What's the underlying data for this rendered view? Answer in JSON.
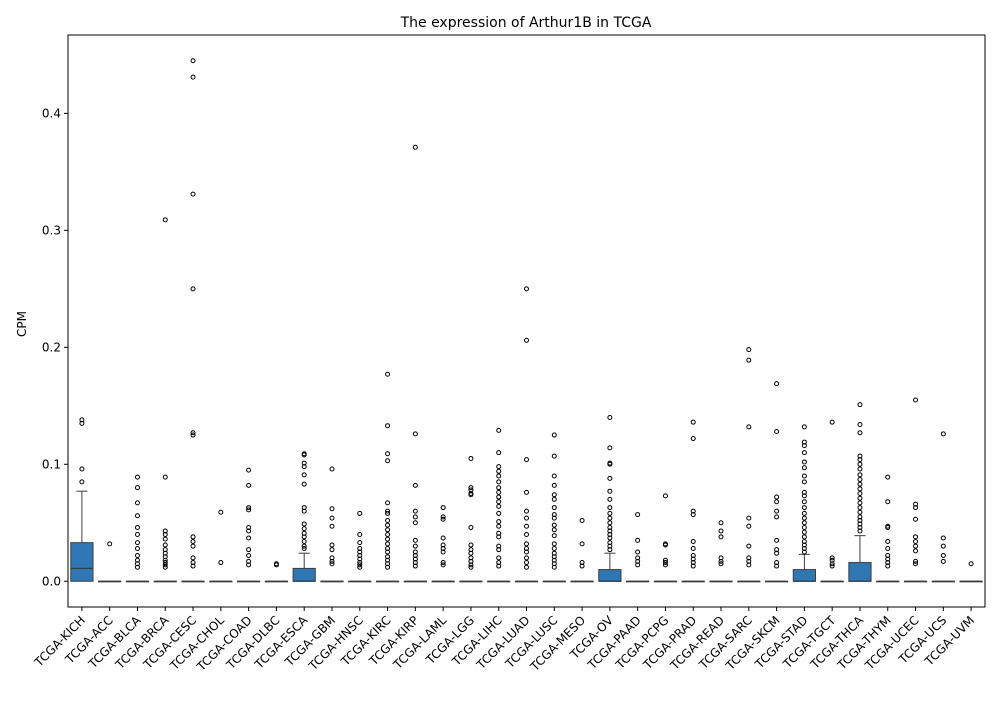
{
  "chart_data": {
    "type": "box",
    "title": "The expression of Arthur1B in TCGA",
    "xlabel": "",
    "ylabel": "CPM",
    "ylim": [
      -0.022,
      0.467
    ],
    "yticks": [
      0.0,
      0.1,
      0.2,
      0.3,
      0.4
    ],
    "ytick_labels": [
      "0.0",
      "0.1",
      "0.2",
      "0.3",
      "0.4"
    ],
    "grid": false,
    "legend": "none",
    "box_color": "#2f77b4",
    "categories": [
      "TCGA-KICH",
      "TCGA-ACC",
      "TCGA-BLCA",
      "TCGA-BRCA",
      "TCGA-CESC",
      "TCGA-CHOL",
      "TCGA-COAD",
      "TCGA-DLBC",
      "TCGA-ESCA",
      "TCGA-GBM",
      "TCGA-HNSC",
      "TCGA-KIRC",
      "TCGA-KIRP",
      "TCGA-LAML",
      "TCGA-LGG",
      "TCGA-LIHC",
      "TCGA-LUAD",
      "TCGA-LUSC",
      "TCGA-MESO",
      "TCGA-OV",
      "TCGA-PAAD",
      "TCGA-PCPG",
      "TCGA-PRAD",
      "TCGA-READ",
      "TCGA-SARC",
      "TCGA-SKCM",
      "TCGA-STAD",
      "TCGA-TGCT",
      "TCGA-THCA",
      "TCGA-THYM",
      "TCGA-UCEC",
      "TCGA-UCS",
      "TCGA-UVM"
    ],
    "boxes": [
      {
        "q1": 0,
        "median": 0.011,
        "q3": 0.033,
        "whisker_low": 0,
        "whisker_high": 0.077,
        "outliers": [
          0.138,
          0.135,
          0.096,
          0.085
        ]
      },
      {
        "q1": 0,
        "median": 0,
        "q3": 0,
        "whisker_low": 0,
        "whisker_high": 0,
        "outliers": [
          0.032
        ]
      },
      {
        "q1": 0,
        "median": 0,
        "q3": 0,
        "whisker_low": 0,
        "whisker_high": 0,
        "outliers": [
          0.089,
          0.08,
          0.067,
          0.056,
          0.046,
          0.04,
          0.033,
          0.028,
          0.022,
          0.018,
          0.015,
          0.012
        ]
      },
      {
        "q1": 0,
        "median": 0,
        "q3": 0,
        "whisker_low": 0,
        "whisker_high": 0,
        "outliers": [
          0.309,
          0.089,
          0.043,
          0.04,
          0.036,
          0.031,
          0.027,
          0.024,
          0.021,
          0.018,
          0.016,
          0.014,
          0.012
        ]
      },
      {
        "q1": 0,
        "median": 0,
        "q3": 0,
        "whisker_low": 0,
        "whisker_high": 0,
        "outliers": [
          0.445,
          0.431,
          0.331,
          0.25,
          0.127,
          0.125,
          0.038,
          0.034,
          0.03,
          0.02,
          0.016,
          0.013
        ]
      },
      {
        "q1": 0,
        "median": 0,
        "q3": 0,
        "whisker_low": 0,
        "whisker_high": 0,
        "outliers": [
          0.059,
          0.016
        ]
      },
      {
        "q1": 0,
        "median": 0,
        "q3": 0,
        "whisker_low": 0,
        "whisker_high": 0,
        "outliers": [
          0.095,
          0.082,
          0.063,
          0.061,
          0.046,
          0.043,
          0.037,
          0.027,
          0.022,
          0.017,
          0.014
        ]
      },
      {
        "q1": 0,
        "median": 0,
        "q3": 0,
        "whisker_low": 0,
        "whisker_high": 0,
        "outliers": [
          0.015,
          0.014
        ]
      },
      {
        "q1": 0,
        "median": 0,
        "q3": 0.011,
        "whisker_low": 0,
        "whisker_high": 0.024,
        "outliers": [
          0.109,
          0.108,
          0.101,
          0.098,
          0.091,
          0.083,
          0.063,
          0.06,
          0.049,
          0.045,
          0.041,
          0.038,
          0.034,
          0.03,
          0.028
        ]
      },
      {
        "q1": 0,
        "median": 0,
        "q3": 0,
        "whisker_low": 0,
        "whisker_high": 0,
        "outliers": [
          0.096,
          0.062,
          0.054,
          0.047,
          0.031,
          0.027,
          0.02,
          0.017,
          0.015
        ]
      },
      {
        "q1": 0,
        "median": 0,
        "q3": 0,
        "whisker_low": 0,
        "whisker_high": 0,
        "outliers": [
          0.058,
          0.04,
          0.033,
          0.028,
          0.025,
          0.022,
          0.019,
          0.016,
          0.014,
          0.012
        ]
      },
      {
        "q1": 0,
        "median": 0,
        "q3": 0,
        "whisker_low": 0,
        "whisker_high": 0,
        "outliers": [
          0.177,
          0.133,
          0.109,
          0.103,
          0.067,
          0.06,
          0.058,
          0.052,
          0.048,
          0.044,
          0.04,
          0.036,
          0.032,
          0.028,
          0.025,
          0.021,
          0.018,
          0.015,
          0.012
        ]
      },
      {
        "q1": 0,
        "median": 0,
        "q3": 0,
        "whisker_low": 0,
        "whisker_high": 0,
        "outliers": [
          0.371,
          0.126,
          0.082,
          0.06,
          0.055,
          0.05,
          0.035,
          0.03,
          0.025,
          0.022,
          0.019,
          0.016,
          0.013
        ]
      },
      {
        "q1": 0,
        "median": 0,
        "q3": 0,
        "whisker_low": 0,
        "whisker_high": 0,
        "outliers": [
          0.063,
          0.055,
          0.053,
          0.037,
          0.031,
          0.028,
          0.025,
          0.016,
          0.014
        ]
      },
      {
        "q1": 0,
        "median": 0,
        "q3": 0,
        "whisker_low": 0,
        "whisker_high": 0,
        "outliers": [
          0.105,
          0.08,
          0.078,
          0.075,
          0.074,
          0.046,
          0.031,
          0.027,
          0.024,
          0.02,
          0.017,
          0.014,
          0.012
        ]
      },
      {
        "q1": 0,
        "median": 0,
        "q3": 0,
        "whisker_low": 0,
        "whisker_high": 0,
        "outliers": [
          0.129,
          0.11,
          0.098,
          0.094,
          0.09,
          0.085,
          0.08,
          0.076,
          0.072,
          0.068,
          0.064,
          0.058,
          0.051,
          0.047,
          0.041,
          0.038,
          0.03,
          0.027,
          0.02,
          0.016,
          0.013
        ]
      },
      {
        "q1": 0,
        "median": 0,
        "q3": 0,
        "whisker_low": 0,
        "whisker_high": 0,
        "outliers": [
          0.25,
          0.206,
          0.104,
          0.076,
          0.06,
          0.054,
          0.047,
          0.04,
          0.032,
          0.028,
          0.025,
          0.02,
          0.016,
          0.012
        ]
      },
      {
        "q1": 0,
        "median": 0,
        "q3": 0,
        "whisker_low": 0,
        "whisker_high": 0,
        "outliers": [
          0.125,
          0.107,
          0.09,
          0.082,
          0.074,
          0.07,
          0.063,
          0.057,
          0.054,
          0.048,
          0.044,
          0.039,
          0.032,
          0.028,
          0.024,
          0.021,
          0.018,
          0.015,
          0.012
        ]
      },
      {
        "q1": 0,
        "median": 0,
        "q3": 0,
        "whisker_low": 0,
        "whisker_high": 0,
        "outliers": [
          0.052,
          0.032,
          0.016,
          0.013
        ]
      },
      {
        "q1": 0,
        "median": 0,
        "q3": 0.01,
        "whisker_low": 0,
        "whisker_high": 0.024,
        "outliers": [
          0.14,
          0.114,
          0.101,
          0.1,
          0.088,
          0.077,
          0.07,
          0.063,
          0.058,
          0.054,
          0.05,
          0.046,
          0.043,
          0.04,
          0.037,
          0.033,
          0.03,
          0.027
        ]
      },
      {
        "q1": 0,
        "median": 0,
        "q3": 0,
        "whisker_low": 0,
        "whisker_high": 0,
        "outliers": [
          0.057,
          0.035,
          0.025,
          0.02,
          0.017,
          0.014
        ]
      },
      {
        "q1": 0,
        "median": 0,
        "q3": 0,
        "whisker_low": 0,
        "whisker_high": 0,
        "outliers": [
          0.073,
          0.032,
          0.031,
          0.018,
          0.016,
          0.014
        ]
      },
      {
        "q1": 0,
        "median": 0,
        "q3": 0,
        "whisker_low": 0,
        "whisker_high": 0,
        "outliers": [
          0.136,
          0.122,
          0.06,
          0.057,
          0.034,
          0.028,
          0.022,
          0.019,
          0.016,
          0.013
        ]
      },
      {
        "q1": 0,
        "median": 0,
        "q3": 0,
        "whisker_low": 0,
        "whisker_high": 0,
        "outliers": [
          0.05,
          0.043,
          0.038,
          0.02,
          0.017,
          0.015
        ]
      },
      {
        "q1": 0,
        "median": 0,
        "q3": 0,
        "whisker_low": 0,
        "whisker_high": 0,
        "outliers": [
          0.198,
          0.189,
          0.132,
          0.054,
          0.047,
          0.03,
          0.02,
          0.017,
          0.014
        ]
      },
      {
        "q1": 0,
        "median": 0,
        "q3": 0,
        "whisker_low": 0,
        "whisker_high": 0,
        "outliers": [
          0.169,
          0.128,
          0.072,
          0.068,
          0.06,
          0.055,
          0.035,
          0.027,
          0.024,
          0.016,
          0.013
        ]
      },
      {
        "q1": 0,
        "median": 0,
        "q3": 0.01,
        "whisker_low": 0,
        "whisker_high": 0.023,
        "outliers": [
          0.132,
          0.119,
          0.116,
          0.11,
          0.102,
          0.097,
          0.09,
          0.085,
          0.076,
          0.073,
          0.068,
          0.063,
          0.058,
          0.054,
          0.05,
          0.046,
          0.042,
          0.038,
          0.034,
          0.031,
          0.028,
          0.025
        ]
      },
      {
        "q1": 0,
        "median": 0,
        "q3": 0,
        "whisker_low": 0,
        "whisker_high": 0,
        "outliers": [
          0.136,
          0.02,
          0.018,
          0.015,
          0.013
        ]
      },
      {
        "q1": 0,
        "median": 0,
        "q3": 0.016,
        "whisker_low": 0,
        "whisker_high": 0.039,
        "outliers": [
          0.151,
          0.134,
          0.127,
          0.107,
          0.104,
          0.1,
          0.096,
          0.091,
          0.087,
          0.083,
          0.079,
          0.075,
          0.071,
          0.067,
          0.063,
          0.059,
          0.055,
          0.052,
          0.049,
          0.046,
          0.043
        ]
      },
      {
        "q1": 0,
        "median": 0,
        "q3": 0,
        "whisker_low": 0,
        "whisker_high": 0,
        "outliers": [
          0.089,
          0.068,
          0.047,
          0.046,
          0.034,
          0.028,
          0.022,
          0.019,
          0.016,
          0.013
        ]
      },
      {
        "q1": 0,
        "median": 0,
        "q3": 0,
        "whisker_low": 0,
        "whisker_high": 0,
        "outliers": [
          0.155,
          0.066,
          0.063,
          0.053,
          0.038,
          0.034,
          0.03,
          0.026,
          0.017,
          0.015
        ]
      },
      {
        "q1": 0,
        "median": 0,
        "q3": 0,
        "whisker_low": 0,
        "whisker_high": 0,
        "outliers": [
          0.126,
          0.037,
          0.03,
          0.022,
          0.017
        ]
      },
      {
        "q1": 0,
        "median": 0,
        "q3": 0,
        "whisker_low": 0,
        "whisker_high": 0,
        "outliers": [
          0.015
        ]
      }
    ]
  }
}
